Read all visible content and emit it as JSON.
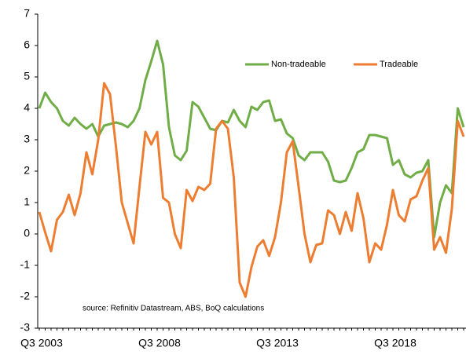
{
  "chart_data": {
    "type": "line",
    "categories": [
      "Q3 2003",
      null,
      null,
      null,
      null,
      null,
      null,
      null,
      null,
      null,
      null,
      null,
      null,
      null,
      null,
      null,
      null,
      null,
      null,
      null,
      "Q3 2008",
      null,
      null,
      null,
      null,
      null,
      null,
      null,
      null,
      null,
      null,
      null,
      null,
      null,
      null,
      null,
      null,
      null,
      null,
      null,
      "Q3 2013",
      null,
      null,
      null,
      null,
      null,
      null,
      null,
      null,
      null,
      null,
      null,
      null,
      null,
      null,
      null,
      null,
      null,
      null,
      null,
      "Q3 2018",
      null,
      null,
      null,
      null,
      null,
      null,
      null,
      null,
      null,
      null,
      null,
      null
    ],
    "series": [
      {
        "name": "Non-tradeable",
        "color": "#70ad47",
        "values": [
          4.0,
          4.5,
          4.2,
          4.0,
          3.6,
          3.45,
          3.7,
          3.5,
          3.35,
          3.5,
          3.1,
          3.45,
          3.5,
          3.55,
          3.5,
          3.4,
          3.6,
          4.0,
          4.9,
          5.5,
          6.15,
          5.4,
          3.4,
          2.5,
          2.35,
          2.65,
          4.2,
          4.05,
          3.7,
          3.35,
          3.3,
          3.6,
          3.55,
          3.95,
          3.6,
          3.4,
          4.05,
          3.95,
          4.2,
          4.25,
          3.6,
          3.65,
          3.2,
          3.05,
          2.5,
          2.35,
          2.6,
          2.6,
          2.6,
          2.3,
          1.7,
          1.65,
          1.7,
          2.1,
          2.6,
          2.7,
          3.15,
          3.15,
          3.1,
          3.05,
          2.2,
          2.35,
          1.9,
          1.8,
          1.95,
          2.0,
          2.35,
          -0.1,
          1.0,
          1.55,
          1.3,
          4.0,
          3.4
        ]
      },
      {
        "name": "Tradeable",
        "color": "#ed7d31",
        "values": [
          0.7,
          0.05,
          -0.55,
          0.45,
          0.7,
          1.25,
          0.6,
          1.3,
          2.6,
          1.9,
          3.0,
          4.8,
          4.45,
          2.8,
          1.0,
          0.35,
          -0.3,
          1.5,
          3.25,
          2.85,
          3.25,
          1.15,
          1.0,
          0.0,
          -0.45,
          1.4,
          1.05,
          1.5,
          1.4,
          1.6,
          3.35,
          3.6,
          3.35,
          1.8,
          -1.55,
          -2.0,
          -1.05,
          -0.4,
          -0.2,
          -0.7,
          -0.1,
          1.0,
          2.6,
          2.95,
          1.5,
          0.0,
          -0.9,
          -0.35,
          -0.3,
          0.75,
          0.6,
          0.0,
          0.7,
          0.1,
          1.3,
          0.5,
          -0.9,
          -0.3,
          -0.5,
          0.3,
          1.4,
          0.6,
          0.4,
          1.1,
          1.2,
          1.7,
          2.1,
          -0.5,
          -0.1,
          -0.6,
          0.8,
          3.6,
          3.1
        ]
      }
    ],
    "ylim": [
      -3,
      7
    ],
    "yticks": [
      -3,
      -2,
      -1,
      0,
      1,
      2,
      3,
      4,
      5,
      6,
      7
    ],
    "annotation": "source:  Refinitiv Datastream, ABS, BoQ calculations",
    "legend": "upper right",
    "grid": false
  }
}
